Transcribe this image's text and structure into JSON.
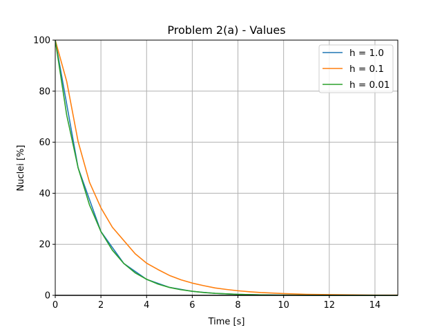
{
  "chart_data": {
    "type": "line",
    "title": "Problem 2(a) - Values",
    "xlabel": "Time [s]",
    "ylabel": "Nuclei [%]",
    "xlim": [
      0,
      15
    ],
    "ylim": [
      0,
      100
    ],
    "xticks": [
      0,
      2,
      4,
      6,
      8,
      10,
      12,
      14
    ],
    "yticks": [
      0,
      20,
      40,
      60,
      80,
      100
    ],
    "grid": true,
    "legend_position": "top-right",
    "hline": {
      "y": 0,
      "color": "#000000"
    },
    "series": [
      {
        "name": "h = 1.0",
        "color": "#1f77b4",
        "x": [
          0,
          1,
          2,
          3,
          4,
          5,
          6,
          7,
          8,
          9,
          10,
          11,
          12,
          13,
          14,
          15
        ],
        "y": [
          100,
          50,
          25,
          12.5,
          6.25,
          3.13,
          1.56,
          0.78,
          0.39,
          0.2,
          0.1,
          0.05,
          0.02,
          0.01,
          0.01,
          0
        ]
      },
      {
        "name": "h = 0.1",
        "color": "#ff7f0e",
        "x": [
          0,
          0.5,
          1,
          1.5,
          2,
          2.5,
          3,
          3.5,
          4,
          4.5,
          5,
          5.5,
          6,
          6.5,
          7,
          7.5,
          8,
          8.5,
          9,
          9.5,
          10,
          11,
          12,
          13,
          14,
          15
        ],
        "y": [
          100,
          83.9,
          60.3,
          44.3,
          34.3,
          26.7,
          21.5,
          16.3,
          12.6,
          10.1,
          7.8,
          6.1,
          4.8,
          3.8,
          2.9,
          2.3,
          1.8,
          1.4,
          1.1,
          0.9,
          0.7,
          0.4,
          0.3,
          0.2,
          0.1,
          0.1
        ]
      },
      {
        "name": "h = 0.01",
        "color": "#2ca02c",
        "x": [
          0,
          0.5,
          1,
          1.5,
          2,
          2.5,
          3,
          3.5,
          4,
          4.5,
          5,
          5.5,
          6,
          6.5,
          7,
          7.5,
          8,
          8.5,
          9,
          9.5,
          10,
          11,
          12,
          13,
          14,
          15
        ],
        "y": [
          100,
          70.7,
          50,
          35.4,
          25,
          17.7,
          12.5,
          8.8,
          6.3,
          4.4,
          3.1,
          2.2,
          1.6,
          1.1,
          0.8,
          0.6,
          0.4,
          0.3,
          0.2,
          0.1,
          0.1,
          0.05,
          0.02,
          0.01,
          0.01,
          0
        ]
      }
    ]
  }
}
